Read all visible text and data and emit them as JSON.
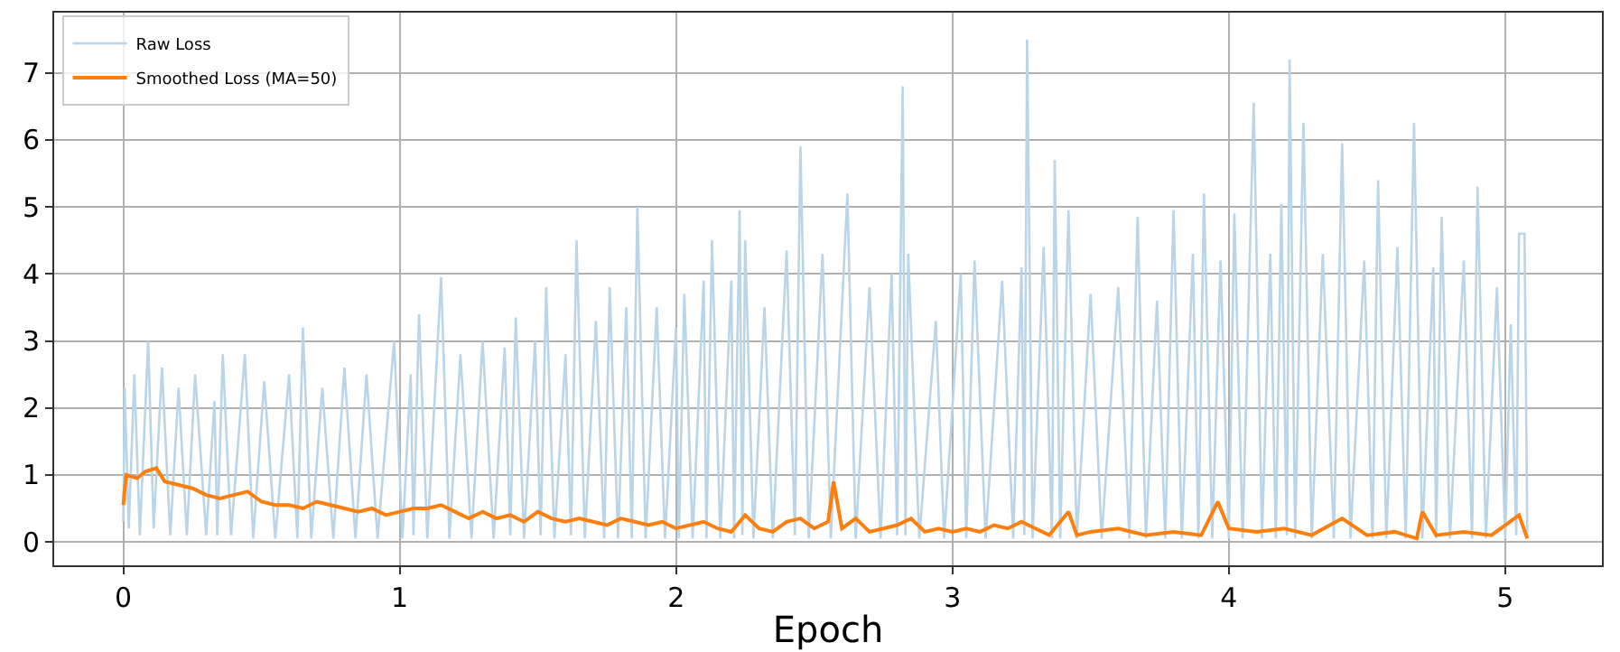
{
  "chart_data": {
    "type": "line",
    "xlabel": "Epoch",
    "xlim": [
      -0.25,
      5.35
    ],
    "ylim": [
      -0.35,
      7.9
    ],
    "xticks": [
      0,
      1,
      2,
      3,
      4,
      5
    ],
    "yticks": [
      0,
      1,
      2,
      3,
      4,
      5,
      6,
      7
    ],
    "grid": true,
    "legend": "top left",
    "marker": "none",
    "line_style": "solid",
    "series": [
      {
        "name": "Raw Loss",
        "color": "#bad4e8",
        "x": [
          0,
          0.005,
          0.02,
          0.04,
          0.06,
          0.09,
          0.11,
          0.14,
          0.17,
          0.2,
          0.23,
          0.26,
          0.3,
          0.33,
          0.34,
          0.36,
          0.39,
          0.44,
          0.47,
          0.51,
          0.55,
          0.6,
          0.63,
          0.65,
          0.68,
          0.72,
          0.76,
          0.8,
          0.84,
          0.88,
          0.92,
          0.98,
          1.01,
          1.04,
          1.05,
          1.07,
          1.1,
          1.15,
          1.18,
          1.22,
          1.26,
          1.3,
          1.34,
          1.38,
          1.4,
          1.42,
          1.45,
          1.49,
          1.51,
          1.53,
          1.56,
          1.6,
          1.62,
          1.64,
          1.67,
          1.71,
          1.74,
          1.76,
          1.79,
          1.82,
          1.84,
          1.86,
          1.89,
          1.93,
          1.96,
          2.0,
          2.01,
          2.03,
          2.06,
          2.1,
          2.11,
          2.13,
          2.16,
          2.2,
          2.21,
          2.23,
          2.24,
          2.25,
          2.28,
          2.32,
          2.35,
          2.4,
          2.43,
          2.45,
          2.48,
          2.53,
          2.56,
          2.62,
          2.65,
          2.7,
          2.74,
          2.78,
          2.8,
          2.82,
          2.83,
          2.84,
          2.88,
          2.94,
          2.97,
          3.03,
          3.05,
          3.08,
          3.12,
          3.18,
          3.22,
          3.25,
          3.26,
          3.27,
          3.29,
          3.33,
          3.36,
          3.37,
          3.39,
          3.42,
          3.45,
          3.5,
          3.54,
          3.6,
          3.64,
          3.67,
          3.7,
          3.74,
          3.77,
          3.8,
          3.83,
          3.87,
          3.89,
          3.91,
          3.94,
          3.97,
          4.0,
          4.02,
          4.05,
          4.09,
          4.12,
          4.15,
          4.17,
          4.19,
          4.21,
          4.22,
          4.24,
          4.27,
          4.3,
          4.34,
          4.38,
          4.41,
          4.44,
          4.49,
          4.52,
          4.54,
          4.57,
          4.61,
          4.64,
          4.67,
          4.7,
          4.74,
          4.75,
          4.77,
          4.8,
          4.85,
          4.88,
          4.9,
          4.93,
          4.97,
          5.0,
          5.02,
          5.04,
          5.05,
          5.07,
          5.08
        ],
        "values": [
          0.3,
          2.3,
          0.2,
          2.5,
          0.1,
          3.0,
          0.2,
          2.6,
          0.1,
          2.3,
          0.1,
          2.5,
          0.1,
          2.1,
          0.1,
          2.8,
          0.1,
          2.8,
          0.05,
          2.4,
          0.05,
          2.5,
          0.05,
          3.2,
          0.05,
          2.3,
          0.05,
          2.6,
          0.05,
          2.5,
          0.05,
          3.0,
          0.05,
          2.5,
          0.1,
          3.4,
          0.05,
          3.95,
          0.05,
          2.8,
          0.05,
          3.0,
          0.05,
          2.9,
          0.1,
          3.35,
          0.05,
          3.0,
          0.1,
          3.8,
          0.05,
          2.8,
          0.1,
          4.5,
          0.05,
          3.3,
          0.05,
          3.8,
          0.05,
          3.5,
          0.05,
          5.0,
          0.05,
          3.5,
          0.05,
          3.2,
          0.05,
          3.7,
          0.05,
          3.9,
          0.05,
          4.5,
          0.05,
          3.9,
          0.05,
          4.95,
          0.1,
          4.5,
          0.05,
          3.5,
          0.05,
          4.35,
          0.1,
          5.9,
          0.05,
          4.3,
          0.05,
          5.2,
          0.05,
          3.8,
          0.05,
          4.0,
          0.1,
          6.8,
          0.1,
          4.3,
          0.05,
          3.3,
          0.05,
          4.0,
          0.05,
          4.2,
          0.05,
          3.9,
          0.05,
          4.1,
          0.1,
          7.5,
          0.05,
          4.4,
          0.05,
          5.7,
          0.05,
          4.95,
          0.05,
          3.7,
          0.05,
          3.8,
          0.05,
          4.85,
          0.05,
          3.6,
          0.05,
          4.95,
          0.05,
          4.3,
          0.05,
          5.2,
          0.05,
          4.2,
          0.05,
          4.9,
          0.05,
          6.55,
          0.05,
          4.3,
          0.05,
          5.05,
          0.1,
          7.2,
          0.05,
          6.25,
          0.05,
          4.3,
          0.05,
          5.95,
          0.05,
          4.2,
          0.05,
          5.4,
          0.05,
          4.4,
          0.05,
          6.25,
          0.05,
          4.1,
          0.05,
          4.85,
          0.05,
          4.2,
          0.05,
          5.3,
          0.05,
          3.8,
          0.05,
          3.25,
          0.1,
          4.6,
          4.6,
          0.1
        ]
      },
      {
        "name": "Smoothed Loss (MA=50)",
        "color": "#ff7f0e",
        "x": [
          0,
          0.01,
          0.05,
          0.08,
          0.12,
          0.15,
          0.2,
          0.25,
          0.3,
          0.35,
          0.4,
          0.45,
          0.5,
          0.55,
          0.6,
          0.65,
          0.7,
          0.75,
          0.8,
          0.85,
          0.9,
          0.95,
          1.0,
          1.05,
          1.1,
          1.15,
          1.2,
          1.25,
          1.3,
          1.35,
          1.4,
          1.45,
          1.5,
          1.55,
          1.6,
          1.65,
          1.7,
          1.75,
          1.8,
          1.85,
          1.9,
          1.95,
          2.0,
          2.05,
          2.1,
          2.15,
          2.2,
          2.25,
          2.3,
          2.35,
          2.4,
          2.45,
          2.5,
          2.55,
          2.57,
          2.6,
          2.65,
          2.7,
          2.75,
          2.8,
          2.85,
          2.9,
          2.95,
          3.0,
          3.05,
          3.1,
          3.15,
          3.2,
          3.25,
          3.3,
          3.35,
          3.42,
          3.45,
          3.5,
          3.6,
          3.7,
          3.8,
          3.9,
          3.96,
          4.0,
          4.1,
          4.2,
          4.3,
          4.41,
          4.5,
          4.6,
          4.68,
          4.7,
          4.75,
          4.85,
          4.95,
          5.05,
          5.08
        ],
        "values": [
          0.55,
          1.0,
          0.95,
          1.05,
          1.1,
          0.9,
          0.85,
          0.8,
          0.7,
          0.65,
          0.7,
          0.75,
          0.6,
          0.55,
          0.55,
          0.5,
          0.6,
          0.55,
          0.5,
          0.45,
          0.5,
          0.4,
          0.45,
          0.5,
          0.5,
          0.55,
          0.45,
          0.35,
          0.45,
          0.35,
          0.4,
          0.3,
          0.45,
          0.35,
          0.3,
          0.35,
          0.3,
          0.25,
          0.35,
          0.3,
          0.25,
          0.3,
          0.2,
          0.25,
          0.3,
          0.2,
          0.15,
          0.4,
          0.2,
          0.15,
          0.3,
          0.35,
          0.2,
          0.3,
          0.9,
          0.2,
          0.35,
          0.15,
          0.2,
          0.25,
          0.35,
          0.15,
          0.2,
          0.15,
          0.2,
          0.15,
          0.25,
          0.2,
          0.3,
          0.2,
          0.1,
          0.45,
          0.1,
          0.15,
          0.2,
          0.1,
          0.15,
          0.1,
          0.6,
          0.2,
          0.15,
          0.2,
          0.1,
          0.35,
          0.1,
          0.15,
          0.05,
          0.45,
          0.1,
          0.15,
          0.1,
          0.4,
          0.05
        ]
      }
    ]
  }
}
